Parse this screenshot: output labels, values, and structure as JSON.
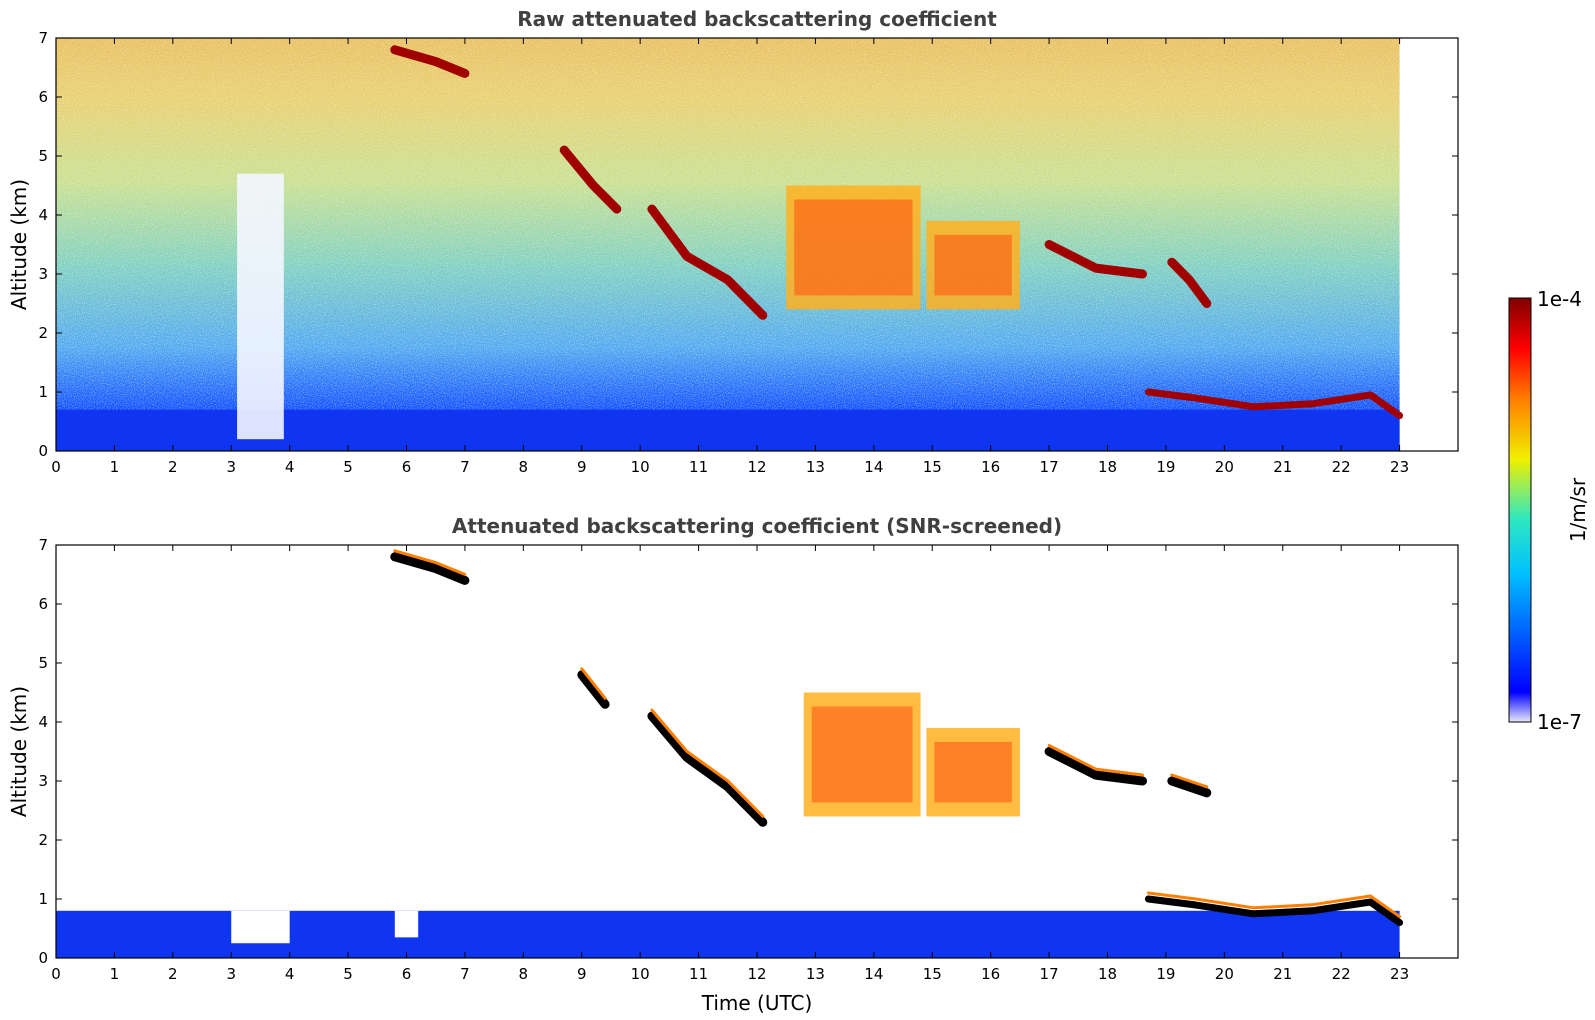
{
  "chart_data": [
    {
      "type": "heatmap",
      "title": "Raw attenuated backscattering coefficient",
      "xlabel": "",
      "ylabel": "Altitude (km)",
      "xlim": [
        0,
        24
      ],
      "ylim": [
        0,
        7
      ],
      "xticks": [
        0,
        1,
        2,
        3,
        4,
        5,
        6,
        7,
        8,
        9,
        10,
        11,
        12,
        13,
        14,
        15,
        16,
        17,
        18,
        19,
        20,
        21,
        22,
        23
      ],
      "yticks": [
        0,
        1,
        2,
        3,
        4,
        5,
        6,
        7
      ],
      "data_extent_hours": [
        0,
        23
      ],
      "features": [
        {
          "kind": "noise_background",
          "x": [
            0,
            23
          ],
          "y": [
            0,
            7
          ]
        },
        {
          "kind": "boundary_layer",
          "x": [
            0,
            23
          ],
          "top_km": 0.7
        },
        {
          "kind": "signal_gap",
          "x": [
            3.1,
            3.9
          ],
          "y": [
            0.2,
            4.7
          ]
        },
        {
          "kind": "cloud_layer",
          "points": [
            [
              5.8,
              6.8
            ],
            [
              6.5,
              6.6
            ],
            [
              7.0,
              6.4
            ]
          ]
        },
        {
          "kind": "cloud_layer",
          "points": [
            [
              8.7,
              5.1
            ],
            [
              9.2,
              4.5
            ],
            [
              9.6,
              4.1
            ]
          ]
        },
        {
          "kind": "cloud_layer",
          "points": [
            [
              10.2,
              4.1
            ],
            [
              10.8,
              3.3
            ],
            [
              11.5,
              2.9
            ],
            [
              12.1,
              2.3
            ]
          ]
        },
        {
          "kind": "cloud_block",
          "x": [
            12.5,
            14.8
          ],
          "y": [
            2.4,
            4.5
          ]
        },
        {
          "kind": "cloud_block",
          "x": [
            14.9,
            16.5
          ],
          "y": [
            2.4,
            3.9
          ]
        },
        {
          "kind": "cloud_layer",
          "points": [
            [
              17.0,
              3.5
            ],
            [
              17.8,
              3.1
            ],
            [
              18.6,
              3.0
            ]
          ]
        },
        {
          "kind": "cloud_layer",
          "points": [
            [
              19.1,
              3.2
            ],
            [
              19.4,
              2.9
            ],
            [
              19.7,
              2.5
            ]
          ]
        },
        {
          "kind": "low_cloud",
          "points": [
            [
              18.7,
              1.0
            ],
            [
              19.5,
              0.9
            ],
            [
              20.5,
              0.75
            ],
            [
              21.5,
              0.8
            ],
            [
              22.5,
              0.95
            ],
            [
              23,
              0.6
            ]
          ]
        }
      ]
    },
    {
      "type": "heatmap",
      "title": "Attenuated backscattering coefficient (SNR-screened)",
      "xlabel": "Time (UTC)",
      "ylabel": "Altitude (km)",
      "xlim": [
        0,
        24
      ],
      "ylim": [
        0,
        7
      ],
      "xticks": [
        0,
        1,
        2,
        3,
        4,
        5,
        6,
        7,
        8,
        9,
        10,
        11,
        12,
        13,
        14,
        15,
        16,
        17,
        18,
        19,
        20,
        21,
        22,
        23
      ],
      "yticks": [
        0,
        1,
        2,
        3,
        4,
        5,
        6,
        7
      ],
      "data_extent_hours": [
        0,
        23
      ],
      "features": [
        {
          "kind": "boundary_layer",
          "x": [
            0,
            23
          ],
          "top_km": 0.8
        },
        {
          "kind": "dip",
          "x": [
            3.0,
            4.0
          ],
          "top_km": 0.25
        },
        {
          "kind": "dip",
          "x": [
            5.8,
            6.2
          ],
          "top_km": 0.35
        },
        {
          "kind": "cloud_layer",
          "points": [
            [
              5.8,
              6.8
            ],
            [
              6.5,
              6.6
            ],
            [
              7.0,
              6.4
            ]
          ]
        },
        {
          "kind": "cloud_layer",
          "points": [
            [
              9.0,
              4.8
            ],
            [
              9.4,
              4.3
            ]
          ]
        },
        {
          "kind": "cloud_layer",
          "points": [
            [
              10.2,
              4.1
            ],
            [
              10.8,
              3.4
            ],
            [
              11.5,
              2.9
            ],
            [
              12.1,
              2.3
            ]
          ]
        },
        {
          "kind": "cloud_block",
          "x": [
            12.8,
            14.8
          ],
          "y": [
            2.4,
            4.5
          ]
        },
        {
          "kind": "cloud_block",
          "x": [
            14.9,
            16.5
          ],
          "y": [
            2.4,
            3.9
          ]
        },
        {
          "kind": "cloud_layer",
          "points": [
            [
              17.0,
              3.5
            ],
            [
              17.8,
              3.1
            ],
            [
              18.6,
              3.0
            ]
          ]
        },
        {
          "kind": "cloud_layer",
          "points": [
            [
              19.1,
              3.0
            ],
            [
              19.7,
              2.8
            ]
          ]
        },
        {
          "kind": "low_cloud",
          "points": [
            [
              18.7,
              1.0
            ],
            [
              19.5,
              0.9
            ],
            [
              20.5,
              0.75
            ],
            [
              21.5,
              0.8
            ],
            [
              22.5,
              0.95
            ],
            [
              23,
              0.6
            ]
          ]
        }
      ]
    }
  ],
  "colorbar": {
    "label": "1/m/sr",
    "top_label": "1e-4",
    "bottom_label": "1e-7",
    "scale": "log",
    "colormap": [
      "#e8e8f8",
      "#0000ff",
      "#00c0ff",
      "#30e8c0",
      "#f0f000",
      "#ff8000",
      "#ff0000",
      "#800000"
    ]
  }
}
